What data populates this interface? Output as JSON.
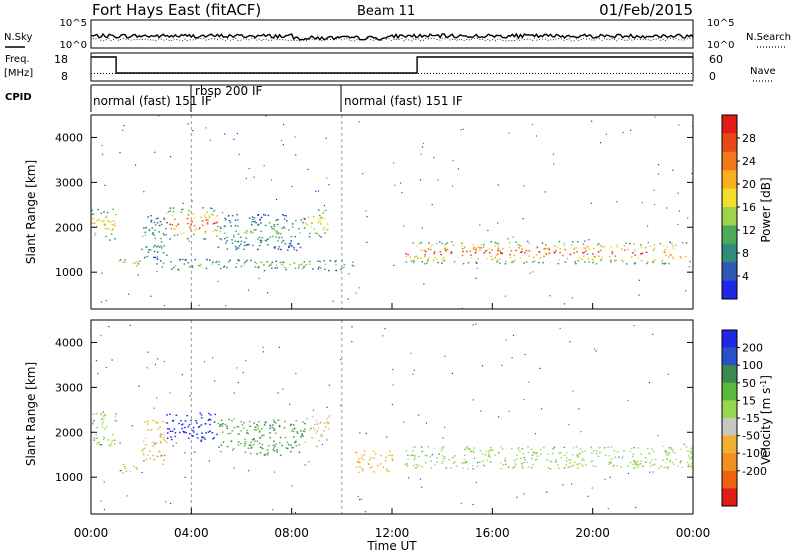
{
  "header": {
    "station": "Fort Hays East (fitACF)",
    "beam": "Beam 11",
    "date": "01/Feb/2015"
  },
  "noise_panel": {
    "left_label": "N.Sky",
    "right_label": "N.Search",
    "ticks_left": [
      "10^5",
      "10^0"
    ],
    "ticks_right": [
      "10^5",
      "10^0"
    ]
  },
  "freq_panel": {
    "left_label_1": "Freq.",
    "left_label_2": "[MHz]",
    "right_label": "Nave",
    "ticks_left": [
      "18",
      "8"
    ],
    "ticks_right": [
      "60",
      "0"
    ]
  },
  "cpid": {
    "label": "CPID",
    "segments": [
      {
        "name": "normal (fast) 151 IF",
        "start_hour": 0
      },
      {
        "name": "rbsp 200 IF",
        "start_hour": 4
      },
      {
        "name": "normal (fast) 151 IF",
        "start_hour": 10
      }
    ]
  },
  "chart_data": [
    {
      "type": "heatmap",
      "name": "power",
      "ylabel": "Slant Range [km]",
      "ylim": [
        180,
        4500
      ],
      "yticks": [
        "1000",
        "2000",
        "3000",
        "4000"
      ],
      "xlim_hours": [
        0,
        24
      ],
      "colorbar_label": "Power [dB]",
      "colorbar_ticks": [
        "4",
        "8",
        "12",
        "16",
        "20",
        "24",
        "28"
      ],
      "colors": [
        "#1e28e6",
        "#2e58b4",
        "#2f8c7a",
        "#4caa5a",
        "#9fd44a",
        "#f0e02c",
        "#f8b020",
        "#f07818",
        "#e84818",
        "#e01c14"
      ],
      "echo_regions": [
        {
          "t0": 0.0,
          "t1": 1.0,
          "r0": 1700,
          "r1": 2450,
          "peak_db": 20
        },
        {
          "t0": 1.0,
          "t1": 2.0,
          "r0": 1100,
          "r1": 1300,
          "peak_db": 22
        },
        {
          "t0": 2.0,
          "t1": 3.0,
          "r0": 1300,
          "r1": 2300,
          "peak_db": 10
        },
        {
          "t0": 3.0,
          "t1": 5.0,
          "r0": 1750,
          "r1": 2450,
          "peak_db": 26
        },
        {
          "t0": 5.0,
          "t1": 8.5,
          "r0": 1500,
          "r1": 2300,
          "peak_db": 10
        },
        {
          "t0": 8.5,
          "t1": 9.5,
          "r0": 1800,
          "r1": 2400,
          "peak_db": 20
        },
        {
          "t0": 2.5,
          "t1": 10.5,
          "r0": 1050,
          "r1": 1300,
          "peak_db": 12
        },
        {
          "t0": 12.5,
          "t1": 24.0,
          "r0": 1200,
          "r1": 1700,
          "peak_db": 26
        }
      ]
    },
    {
      "type": "heatmap",
      "name": "velocity",
      "ylabel": "Slant Range [km]",
      "ylim": [
        180,
        4500
      ],
      "yticks": [
        "1000",
        "2000",
        "3000",
        "4000"
      ],
      "xlim_hours": [
        0,
        24
      ],
      "colorbar_label": "Velocity [m s^-1]",
      "colorbar_ticks": [
        "200",
        "100",
        "50",
        "15",
        "-15",
        "-50",
        "-100",
        "-200"
      ],
      "colors": [
        "#1e28e6",
        "#2a50c8",
        "#3a8a50",
        "#5ab83c",
        "#98d850",
        "#c8c8c0",
        "#f0b030",
        "#f09020",
        "#f06010",
        "#e01c14"
      ],
      "echo_regions": [
        {
          "t0": 0.0,
          "t1": 1.0,
          "r0": 1700,
          "r1": 2450,
          "v": 0
        },
        {
          "t0": 1.0,
          "t1": 2.0,
          "r0": 1100,
          "r1": 1300,
          "v": 0
        },
        {
          "t0": 2.0,
          "t1": 3.0,
          "r0": 1300,
          "r1": 2300,
          "v": -60
        },
        {
          "t0": 3.0,
          "t1": 5.0,
          "r0": 1800,
          "r1": 2450,
          "v": 250
        },
        {
          "t0": 5.0,
          "t1": 8.5,
          "r0": 1500,
          "r1": 2300,
          "v": 50
        },
        {
          "t0": 8.5,
          "t1": 9.5,
          "r0": 1800,
          "r1": 2400,
          "v": -50
        },
        {
          "t0": 10.5,
          "t1": 12.0,
          "r0": 1100,
          "r1": 1600,
          "v": -70
        },
        {
          "t0": 12.5,
          "t1": 24.0,
          "r0": 1200,
          "r1": 1700,
          "v": 0
        }
      ]
    }
  ],
  "x_axis": {
    "ticks": [
      "00:00",
      "04:00",
      "08:00",
      "12:00",
      "16:00",
      "20:00",
      "00:00"
    ],
    "label": "Time UT"
  }
}
